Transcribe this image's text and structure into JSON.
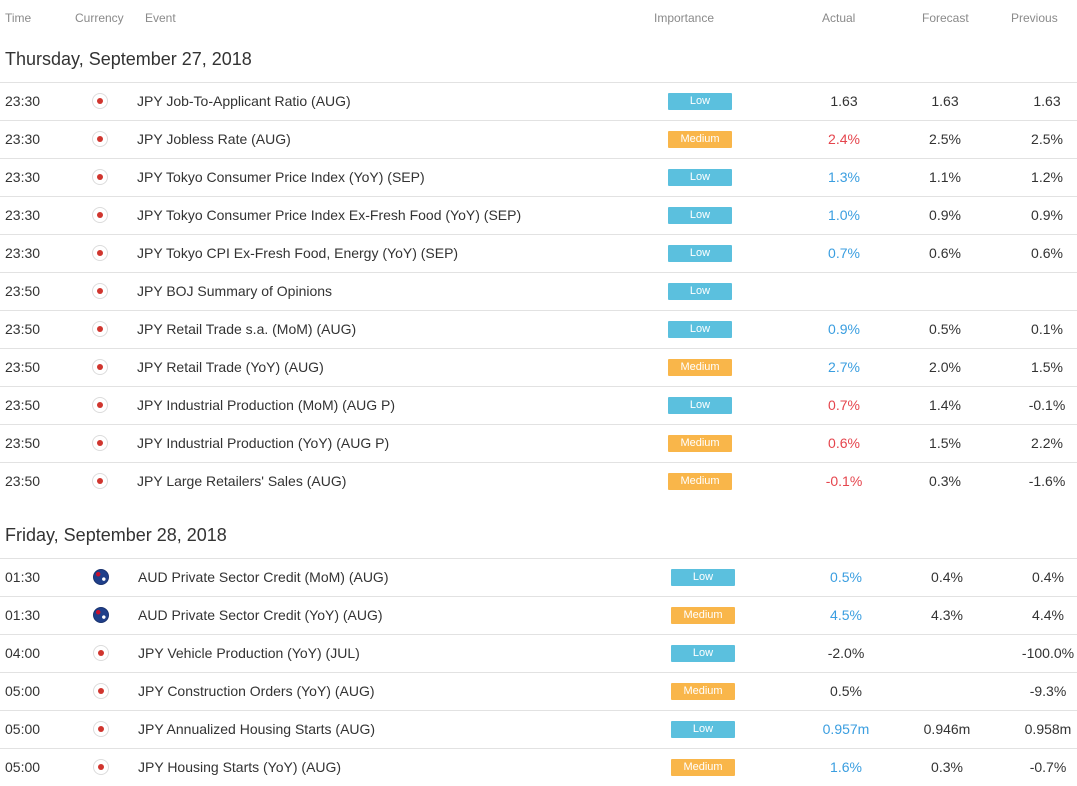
{
  "header": {
    "time": "Time",
    "currency": "Currency",
    "event": "Event",
    "importance": "Importance",
    "actual": "Actual",
    "forecast": "Forecast",
    "previous": "Previous"
  },
  "days": [
    {
      "title": "Thursday, September 27, 2018",
      "rows": [
        {
          "time": "23:30",
          "flag": "jp",
          "event": "JPY Job-To-Applicant Ratio (AUG)",
          "importance": "Low",
          "actual": "1.63",
          "actual_color": "neutral",
          "forecast": "1.63",
          "previous": "1.63"
        },
        {
          "time": "23:30",
          "flag": "jp",
          "event": "JPY Jobless Rate (AUG)",
          "importance": "Medium",
          "actual": "2.4%",
          "actual_color": "down",
          "forecast": "2.5%",
          "previous": "2.5%"
        },
        {
          "time": "23:30",
          "flag": "jp",
          "event": "JPY Tokyo Consumer Price Index (YoY) (SEP)",
          "importance": "Low",
          "actual": "1.3%",
          "actual_color": "up",
          "forecast": "1.1%",
          "previous": "1.2%"
        },
        {
          "time": "23:30",
          "flag": "jp",
          "event": "JPY Tokyo Consumer Price Index Ex-Fresh Food (YoY) (SEP)",
          "importance": "Low",
          "actual": "1.0%",
          "actual_color": "up",
          "forecast": "0.9%",
          "previous": "0.9%"
        },
        {
          "time": "23:30",
          "flag": "jp",
          "event": "JPY Tokyo CPI Ex-Fresh Food, Energy (YoY) (SEP)",
          "importance": "Low",
          "actual": "0.7%",
          "actual_color": "up",
          "forecast": "0.6%",
          "previous": "0.6%"
        },
        {
          "time": "23:50",
          "flag": "jp",
          "event": "JPY BOJ Summary of Opinions",
          "importance": "Low",
          "actual": "",
          "actual_color": "neutral",
          "forecast": "",
          "previous": ""
        },
        {
          "time": "23:50",
          "flag": "jp",
          "event": "JPY Retail Trade s.a. (MoM) (AUG)",
          "importance": "Low",
          "actual": "0.9%",
          "actual_color": "up",
          "forecast": "0.5%",
          "previous": "0.1%"
        },
        {
          "time": "23:50",
          "flag": "jp",
          "event": "JPY Retail Trade (YoY) (AUG)",
          "importance": "Medium",
          "actual": "2.7%",
          "actual_color": "up",
          "forecast": "2.0%",
          "previous": "1.5%"
        },
        {
          "time": "23:50",
          "flag": "jp",
          "event": "JPY Industrial Production (MoM) (AUG P)",
          "importance": "Low",
          "actual": "0.7%",
          "actual_color": "down",
          "forecast": "1.4%",
          "previous": "-0.1%"
        },
        {
          "time": "23:50",
          "flag": "jp",
          "event": "JPY Industrial Production (YoY) (AUG P)",
          "importance": "Medium",
          "actual": "0.6%",
          "actual_color": "down",
          "forecast": "1.5%",
          "previous": "2.2%"
        },
        {
          "time": "23:50",
          "flag": "jp",
          "event": "JPY Large Retailers' Sales (AUG)",
          "importance": "Medium",
          "actual": "-0.1%",
          "actual_color": "down",
          "forecast": "0.3%",
          "previous": "-1.6%"
        }
      ]
    },
    {
      "title": "Friday, September 28, 2018",
      "rows": [
        {
          "time": "01:30",
          "flag": "au",
          "event": "AUD Private Sector Credit (MoM) (AUG)",
          "importance": "Low",
          "actual": "0.5%",
          "actual_color": "up",
          "forecast": "0.4%",
          "previous": "0.4%"
        },
        {
          "time": "01:30",
          "flag": "au",
          "event": "AUD Private Sector Credit (YoY) (AUG)",
          "importance": "Medium",
          "actual": "4.5%",
          "actual_color": "up",
          "forecast": "4.3%",
          "previous": "4.4%"
        },
        {
          "time": "04:00",
          "flag": "jp",
          "event": "JPY Vehicle Production (YoY) (JUL)",
          "importance": "Low",
          "actual": "-2.0%",
          "actual_color": "neutral",
          "forecast": "",
          "previous": "-100.0%"
        },
        {
          "time": "05:00",
          "flag": "jp",
          "event": "JPY Construction Orders (YoY) (AUG)",
          "importance": "Medium",
          "actual": "0.5%",
          "actual_color": "neutral",
          "forecast": "",
          "previous": "-9.3%"
        },
        {
          "time": "05:00",
          "flag": "jp",
          "event": "JPY Annualized Housing Starts (AUG)",
          "importance": "Low",
          "actual": "0.957m",
          "actual_color": "up",
          "forecast": "0.946m",
          "previous": "0.958m"
        },
        {
          "time": "05:00",
          "flag": "jp",
          "event": "JPY Housing Starts (YoY) (AUG)",
          "importance": "Medium",
          "actual": "1.6%",
          "actual_color": "up",
          "forecast": "0.3%",
          "previous": "-0.7%"
        }
      ]
    }
  ]
}
